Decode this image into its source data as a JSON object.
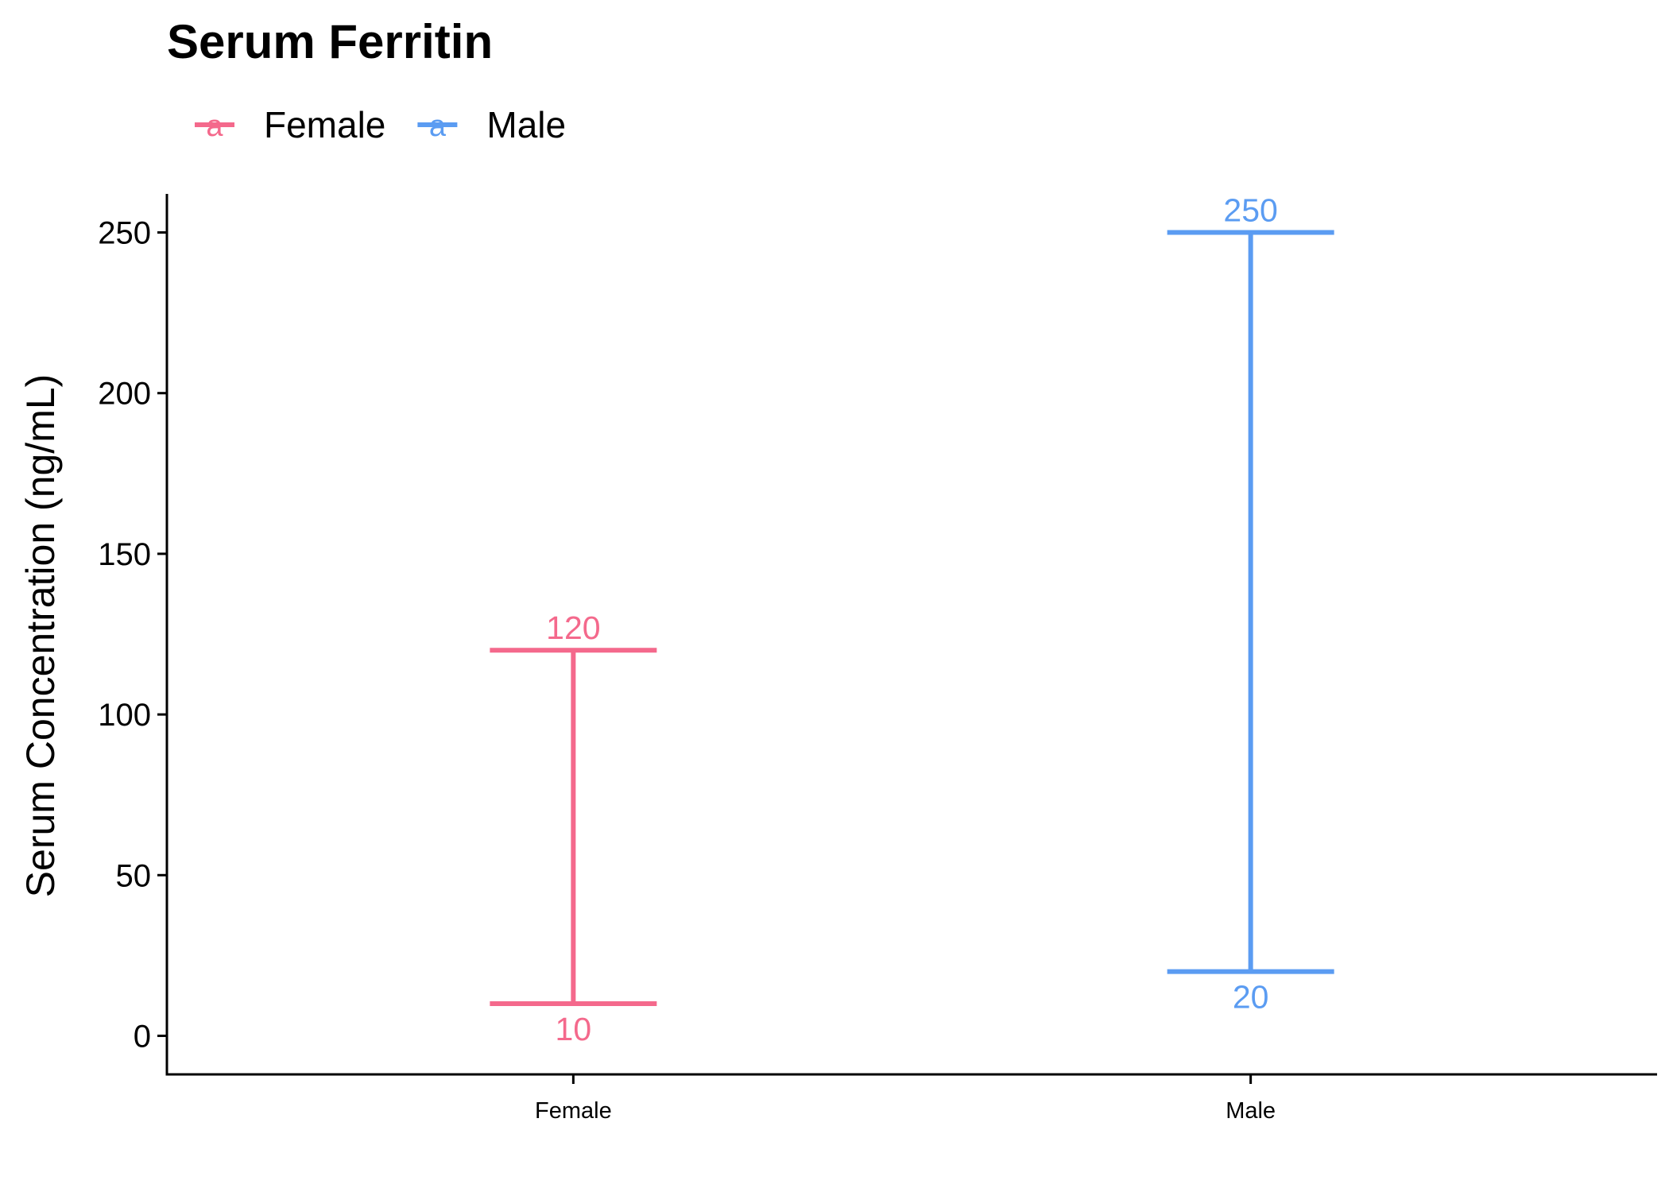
{
  "chart_data": {
    "type": "errorbar",
    "title": "Serum Ferritin",
    "xlabel": "",
    "ylabel": "Serum Concentration (ng/mL)",
    "categories": [
      "Female",
      "Male"
    ],
    "series": [
      {
        "name": "Female",
        "category": "Female",
        "low": 10,
        "high": 120,
        "color": "#F4698C"
      },
      {
        "name": "Male",
        "category": "Male",
        "low": 20,
        "high": 250,
        "color": "#5B9CF2"
      }
    ],
    "ylim": [
      -12,
      262
    ],
    "yticks": [
      0,
      50,
      100,
      150,
      200,
      250
    ],
    "legend": {
      "position": "top-left",
      "key_glyph": "a",
      "entries": [
        "Female",
        "Male"
      ]
    },
    "grid": false
  }
}
